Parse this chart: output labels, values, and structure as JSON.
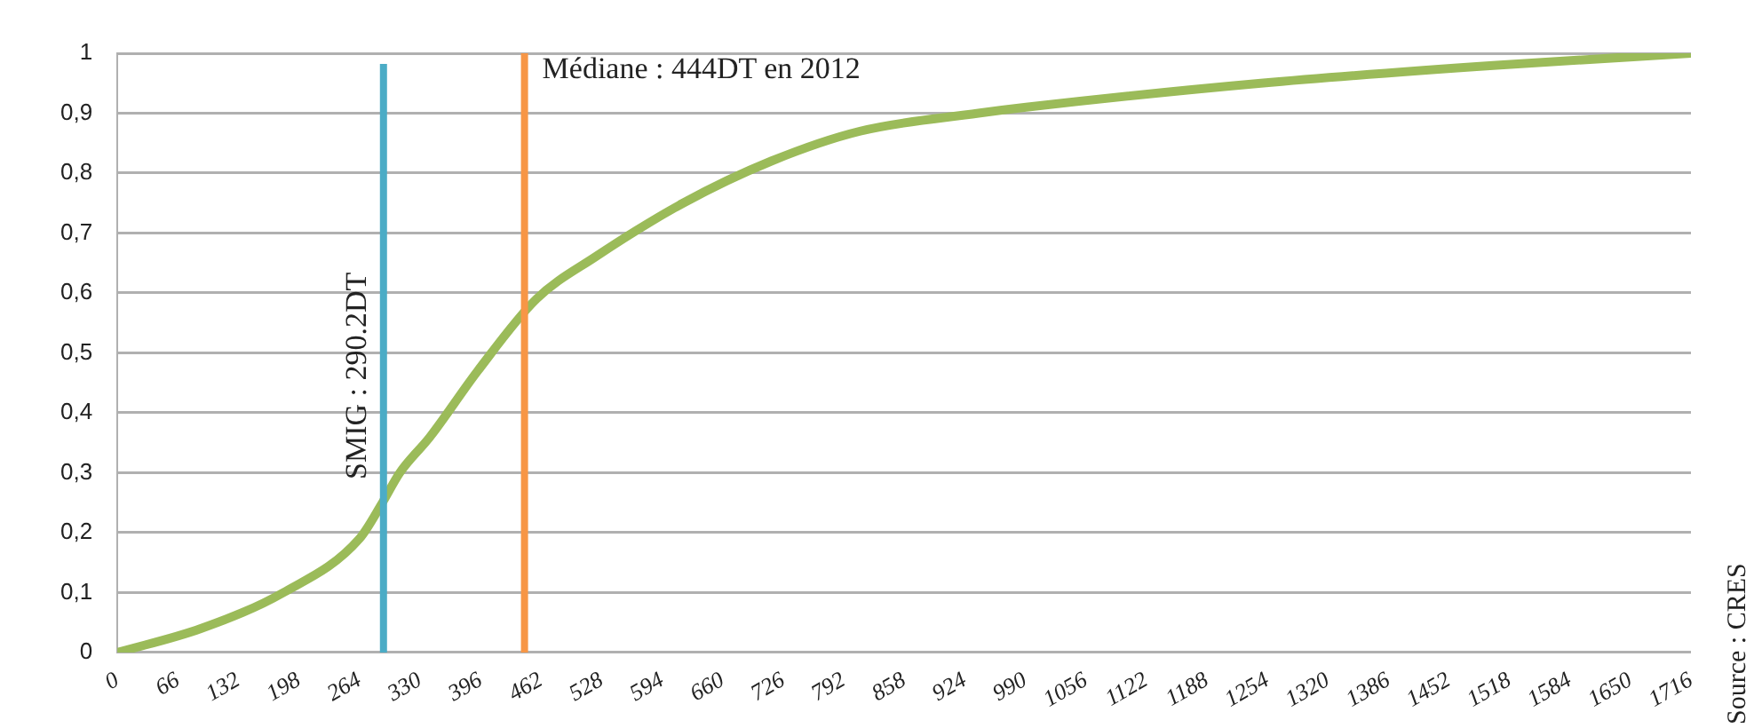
{
  "chart_data": {
    "type": "line",
    "x": [
      0,
      91,
      181,
      264,
      289,
      308,
      341,
      393,
      457,
      521,
      617,
      713,
      810,
      939,
      991,
      1247,
      1504,
      1716
    ],
    "series": [
      {
        "color": "#9bbb59",
        "values": [
          0,
          0.04,
          0.1,
          0.19,
          0.25,
          0.3,
          0.36,
          0.47,
          0.59,
          0.66,
          0.75,
          0.82,
          0.87,
          0.9,
          0.91,
          0.95,
          0.98,
          1
        ]
      }
    ],
    "xlim": [
      0,
      1716
    ],
    "xticks": [
      0,
      66,
      132,
      198,
      264,
      330,
      396,
      462,
      528,
      594,
      660,
      726,
      792,
      858,
      924,
      990,
      1056,
      1122,
      1188,
      1254,
      1320,
      1386,
      1452,
      1518,
      1584,
      1650,
      1716
    ],
    "ylim": [
      0,
      1
    ],
    "yticks": [
      0,
      {
        "value": 0.1,
        "label": "0,1"
      },
      {
        "value": 0.2,
        "label": "0,2"
      },
      {
        "value": 0.3,
        "label": "0,3"
      },
      {
        "value": 0.4,
        "label": "0,4"
      },
      {
        "value": 0.5,
        "label": "0,5"
      },
      {
        "value": 0.6,
        "label": "0,6"
      },
      {
        "value": 0.7,
        "label": "0,7"
      },
      {
        "value": 0.8,
        "label": "0,8"
      },
      {
        "value": 0.9,
        "label": "0,9"
      },
      1
    ],
    "ref_lines": [
      {
        "axis": "x",
        "value": 290.2,
        "label": "SMIG : 290.2DT",
        "color": "#4bacc6"
      },
      {
        "axis": "x",
        "value": 444,
        "label": "Médiane : 444DT en 2012",
        "color": "#f79646"
      }
    ],
    "annotations": [
      "Source : CRES"
    ],
    "grid": "y",
    "legend": false,
    "marker": "none",
    "line_style": "solid"
  }
}
